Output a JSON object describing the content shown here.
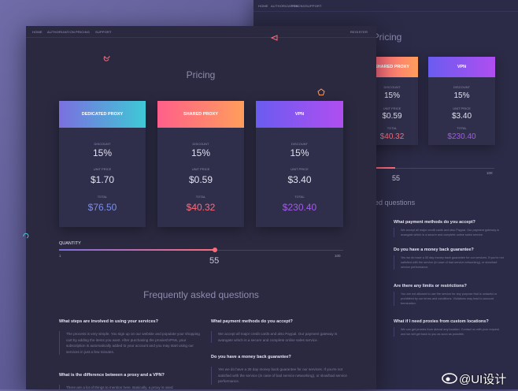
{
  "nav": {
    "items": [
      "HOME",
      "AUTHORIZATION",
      "PRICING",
      "SUPPORT"
    ],
    "register": "REGISTER"
  },
  "pricing": {
    "title": "Pricing",
    "plans": [
      {
        "name": "DEDICATED PROXY",
        "discount_label": "DISCOUNT",
        "discount": "15%",
        "unit_price_label": "UNIT PRICE",
        "unit_price": "$1.70",
        "total_label": "TOTAL",
        "total": "$76.50"
      },
      {
        "name": "SHARED PROXY",
        "discount_label": "DISCOUNT",
        "discount": "15%",
        "unit_price_label": "UNIT PRICE",
        "unit_price": "$0.59",
        "total_label": "TOTAL",
        "total": "$40.32"
      },
      {
        "name": "VPN",
        "discount_label": "DISCOUNT",
        "discount": "15%",
        "unit_price_label": "UNIT PRICE",
        "unit_price": "$3.40",
        "total_label": "TOTAL",
        "total": "$230.40"
      }
    ],
    "quantity": {
      "label": "QUANTITY",
      "min": "1",
      "value": "55",
      "max": "100"
    }
  },
  "faq": {
    "title": "Frequently asked questions",
    "items": [
      {
        "question": "What steps are involved in using your services?",
        "answer": "The process is very simple. You sign up on our website and populate your shopping cart by adding the items you want. After purchasing the proxies/VPNs, your subscription is automatically added to your account and you may start using our services in just a few minutes."
      },
      {
        "question": "What is the difference between a proxy and a VPN?",
        "answer": "There are a lot of things to mention here. Basically, a proxy is used"
      },
      {
        "question": "What payment methods do you accept?",
        "answer": "We accept all major credit cards and also Paypal. Our payment gateway is avangate which is a secure and complete online sales service."
      },
      {
        "question": "Do you have a money back guarantee?",
        "answer": "Yes we do have a 30 day money back guarantee for our services. If you're not satisfied with the service (in case of bad service networking), or slow/bad service performance."
      },
      {
        "question": "Are there any limits or restrictions?",
        "answer": "You are not allowed to use the service for any purpose that is unlawful or prohibited by our terms and conditions. Violations may lead to account termination."
      },
      {
        "question": "What if I need proxies from custom locations?",
        "answer": "We can get proxies from almost any location. Contact us with your request and we will get back to you as soon as possible."
      }
    ]
  },
  "watermark": "@UI设计"
}
